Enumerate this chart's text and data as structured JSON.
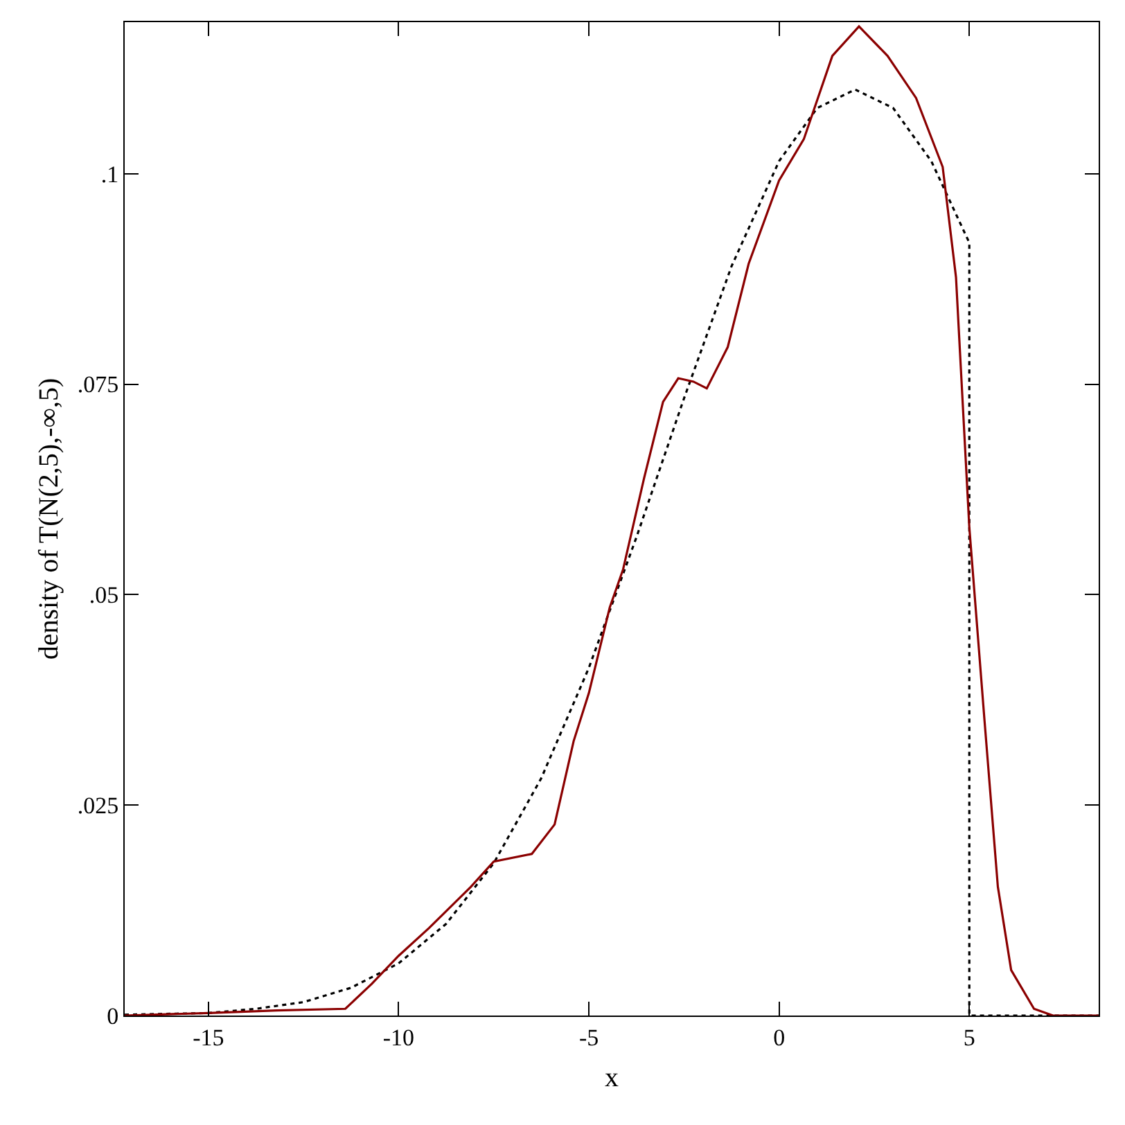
{
  "chart_data": {
    "type": "line",
    "xlabel": "x",
    "ylabel": "density of T(N(2,5),-∞,5)",
    "xlim": [
      -17.2,
      8.4
    ],
    "ylim": [
      0,
      0.118
    ],
    "xticks": [
      -15,
      -10,
      -5,
      0,
      5
    ],
    "yticks": [
      {
        "value": 0,
        "label": "0"
      },
      {
        "value": 0.025,
        "label": ".025"
      },
      {
        "value": 0.05,
        "label": ".05"
      },
      {
        "value": 0.075,
        "label": ".075"
      },
      {
        "value": 0.1,
        "label": ".1"
      }
    ],
    "grid": false,
    "marker": "none",
    "series": [
      {
        "color": "#000000",
        "line_style": "dotted",
        "x": [
          -17.2,
          -15,
          -13.75,
          -12.5,
          -11.25,
          -10,
          -8.75,
          -7.5,
          -6.25,
          -5,
          -3.75,
          -2.5,
          -1.25,
          0,
          1,
          2,
          3,
          4,
          5,
          5,
          8.4
        ],
        "values": [
          0.0001,
          0.0003,
          0.0008,
          0.0016,
          0.0033,
          0.0062,
          0.0109,
          0.0181,
          0.0282,
          0.0413,
          0.0568,
          0.0733,
          0.089,
          0.1015,
          0.1078,
          0.11,
          0.1078,
          0.1015,
          0.0918,
          0,
          0
        ]
      },
      {
        "color": "#8b0000",
        "line_style": "solid",
        "x": [
          -17.2,
          -15,
          -13.2,
          -11.4,
          -10.7,
          -10,
          -9.2,
          -8.1,
          -7.5,
          -6.5,
          -5.9,
          -5.4,
          -5,
          -4.45,
          -4.1,
          -3.55,
          -3.05,
          -2.65,
          -2.25,
          -1.9,
          -1.35,
          -0.8,
          0,
          0.65,
          1.4,
          2.1,
          2.85,
          3.6,
          4.3,
          4.65,
          5,
          5.4,
          5.75,
          6.1,
          6.7,
          7.2,
          8.4
        ],
        "values": [
          0,
          0.0003,
          0.0006,
          0.0008,
          0.0038,
          0.0071,
          0.0104,
          0.0153,
          0.0183,
          0.0192,
          0.0227,
          0.0326,
          0.0383,
          0.0485,
          0.053,
          0.0638,
          0.0729,
          0.0757,
          0.0753,
          0.0745,
          0.0794,
          0.0893,
          0.0992,
          0.1041,
          0.114,
          0.1175,
          0.114,
          0.109,
          0.1008,
          0.0877,
          0.058,
          0.035,
          0.0153,
          0.0054,
          0.0008,
          0,
          0
        ]
      }
    ]
  }
}
